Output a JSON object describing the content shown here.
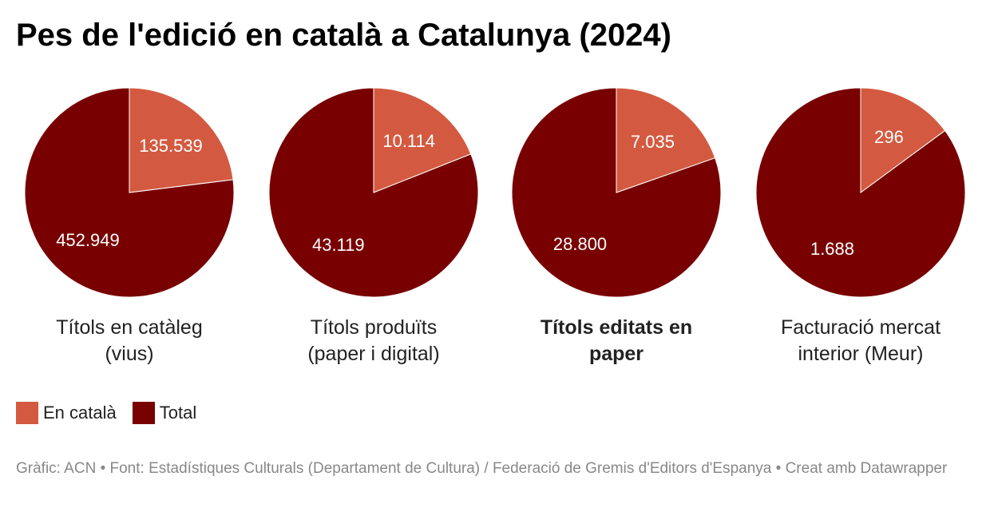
{
  "title": "Pes de l'edició en català a Catalunya (2024)",
  "chart_data": {
    "type": "pie",
    "title": "Pes de l'edició en català a Catalunya (2024)",
    "legend": [
      "En català",
      "Total"
    ],
    "legend_placement": "bottom-left",
    "colors": {
      "En català": "#d35a40",
      "Total": "#780000"
    },
    "pies": [
      {
        "label": "Títols en catàleg (vius)",
        "bold": false,
        "values": [
          135539,
          452949
        ],
        "value_labels": [
          "135.539",
          "452.949"
        ]
      },
      {
        "label": "Títols produïts (paper i digital)",
        "bold": false,
        "values": [
          10114,
          43119
        ],
        "value_labels": [
          "10.114",
          "43.119"
        ]
      },
      {
        "label": "Títols editats en paper",
        "bold": true,
        "values": [
          7035,
          28800
        ],
        "value_labels": [
          "7.035",
          "28.800"
        ]
      },
      {
        "label": "Facturació mercat interior (Meur)",
        "bold": false,
        "values": [
          296,
          1688
        ],
        "value_labels": [
          "296",
          "1.688"
        ]
      }
    ]
  },
  "footer": "Gràfic: ACN • Font: Estadístiques Culturals (Departament de Cultura) / Federació de Gremis d'Editors d'Espanya • Creat amb Datawrapper"
}
